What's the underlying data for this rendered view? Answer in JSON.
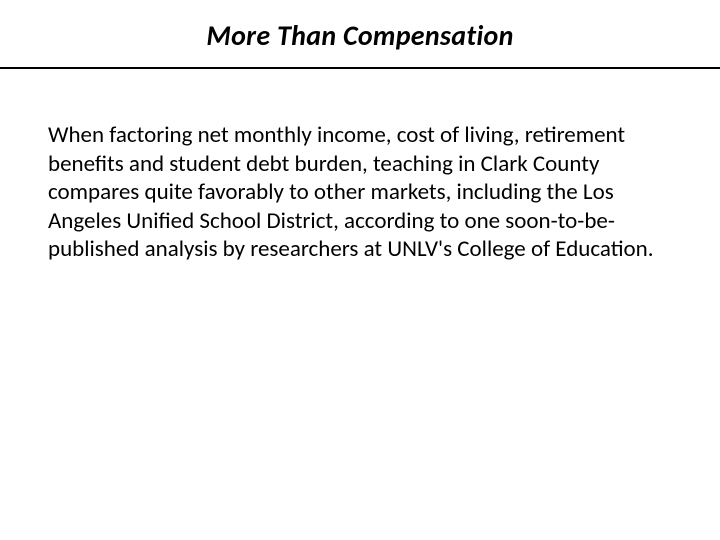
{
  "slide": {
    "title": "More Than Compensation",
    "body": "When factoring net monthly income, cost of living, retirement benefits and student debt burden, teaching in Clark County compares quite favorably to other markets, including the Los Angeles Unified School District, according to one soon-to-be-published analysis by researchers at UNLV's College of Education.",
    "title_fontsize": 28,
    "title_color": "#000000",
    "title_weight": "bold",
    "title_style": "italic",
    "body_fontsize": 23,
    "body_color": "#000000",
    "body_lineheight": 1.24,
    "divider_color": "#000000",
    "divider_height": 2,
    "background_color": "#ffffff"
  }
}
